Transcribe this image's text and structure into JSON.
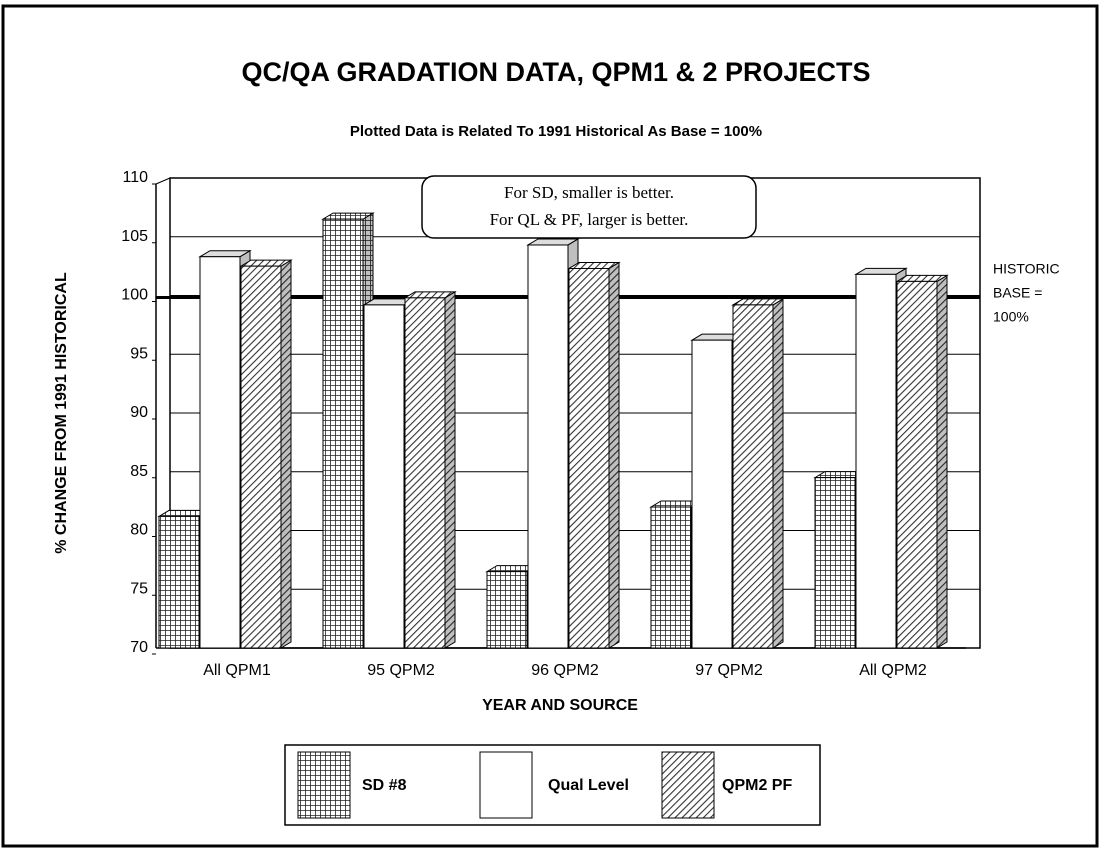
{
  "chart_data": {
    "type": "bar3d",
    "title": "QC/QA GRADATION DATA,  QPM1 & 2 PROJECTS",
    "subtitle": "Plotted Data is Related To 1991 Historical As Base = 100%",
    "x_label": "YEAR AND SOURCE",
    "y_label": "% CHANGE FROM 1991 HISTORICAL",
    "categories": [
      "All QPM1",
      "95 QPM2",
      "96 QPM2",
      "97 QPM2",
      "All QPM2"
    ],
    "series": [
      {
        "name": "SD #8",
        "color": "#333333",
        "pattern": "grid",
        "values": [
          81.2,
          106.5,
          76.5,
          82,
          84.5
        ]
      },
      {
        "name": "Qual Level",
        "color": "#ffffff",
        "pattern": "none",
        "values": [
          103.3,
          99.2,
          104.3,
          96.2,
          101.8
        ]
      },
      {
        "name": "QPM2 PF",
        "color": "#444444",
        "pattern": "diagonal",
        "values": [
          102.5,
          99.8,
          102.3,
          99.2,
          101.2
        ]
      }
    ],
    "ylim": [
      70,
      110
    ],
    "yticks": [
      70,
      75,
      80,
      85,
      90,
      95,
      100,
      105,
      110
    ],
    "grid": true,
    "reference_line": {
      "value": 100,
      "label": [
        "HISTORIC",
        "BASE =",
        "100%"
      ]
    },
    "annotation": [
      "For SD, smaller is better.",
      "For QL & PF, larger is better."
    ],
    "legend": "bottom"
  }
}
